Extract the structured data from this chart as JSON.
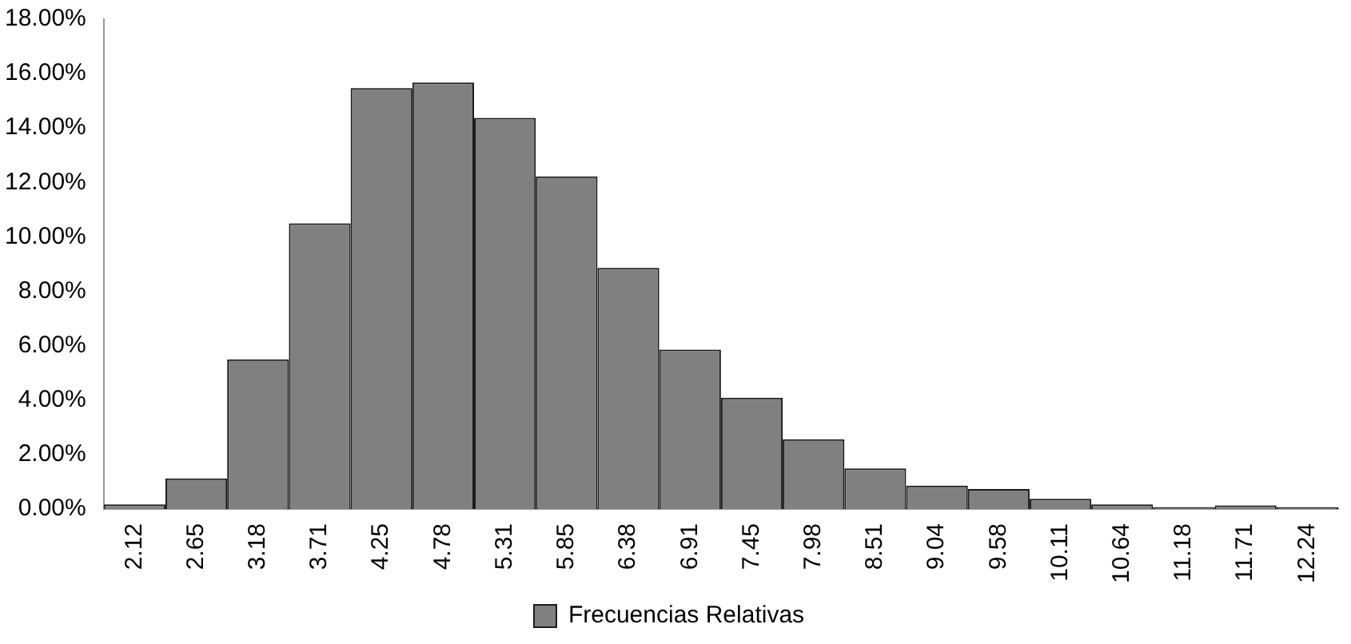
{
  "chart_data": {
    "type": "bar",
    "categories": [
      "2.12",
      "2.65",
      "3.18",
      "3.71",
      "4.25",
      "4.78",
      "5.31",
      "5.85",
      "6.38",
      "6.91",
      "7.45",
      "7.98",
      "8.51",
      "9.04",
      "9.58",
      "10.11",
      "10.64",
      "11.18",
      "11.71",
      "12.24"
    ],
    "series": [
      {
        "name": "Frecuencias Relativas",
        "color": "#808080",
        "values": [
          0.17,
          1.12,
          5.5,
          10.5,
          15.47,
          15.67,
          14.37,
          12.22,
          8.86,
          5.86,
          4.09,
          2.56,
          1.49,
          0.86,
          0.73,
          0.37,
          0.17,
          0.06,
          0.13,
          0.06
        ]
      }
    ],
    "ylim": [
      0,
      18
    ],
    "yticks": [
      {
        "value": 0,
        "label": "0.00%"
      },
      {
        "value": 2,
        "label": "2.00%"
      },
      {
        "value": 4,
        "label": "4.00%"
      },
      {
        "value": 6,
        "label": "6.00%"
      },
      {
        "value": 8,
        "label": "8.00%"
      },
      {
        "value": 10,
        "label": "10.00%"
      },
      {
        "value": 12,
        "label": "12.00%"
      },
      {
        "value": 14,
        "label": "14.00%"
      },
      {
        "value": 16,
        "label": "16.00%"
      },
      {
        "value": 18,
        "label": "18.00%"
      }
    ],
    "grid": false,
    "legend": "bottom"
  }
}
